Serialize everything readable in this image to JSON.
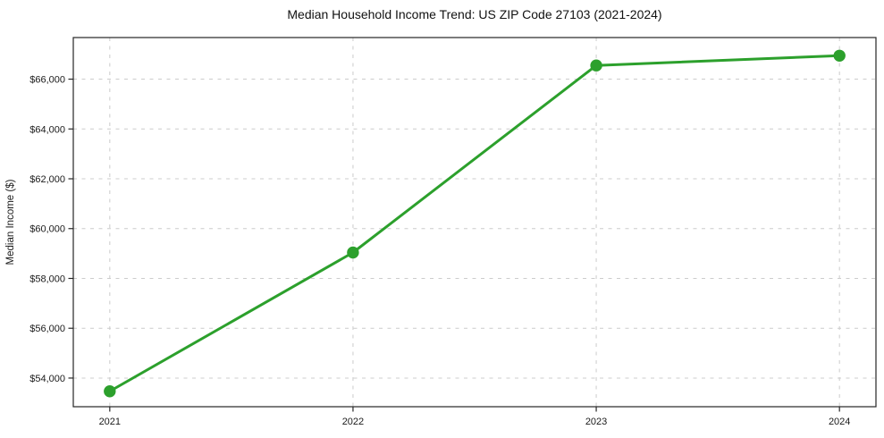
{
  "figure": {
    "background": "#ffffff"
  },
  "chart_data": {
    "type": "line",
    "title": "Median Household Income Trend: US ZIP Code 27103 (2021-2024)",
    "xlabel": "",
    "ylabel": "Median Income ($)",
    "categories": [
      "2021",
      "2022",
      "2023",
      "2024"
    ],
    "series": [
      {
        "name": "Median Household Income",
        "values": [
          53470,
          59040,
          66550,
          66940
        ],
        "color": "#2ca02c"
      }
    ],
    "y_ticks": [
      54000,
      56000,
      58000,
      60000,
      62000,
      64000,
      66000
    ],
    "y_tick_labels": [
      "$54,000",
      "$56,000",
      "$58,000",
      "$60,000",
      "$62,000",
      "$64,000",
      "$66,000"
    ],
    "ylim": [
      52850,
      67670
    ],
    "x_margin_frac": 0.05,
    "grid": true,
    "grid_style": "dashed",
    "legend_position": "none",
    "style": {
      "grid_color": "#cccccc",
      "axis_color": "#262626",
      "text_color": "#1a1a1a",
      "line_color": "#2ca02c",
      "marker_radius": 6.7,
      "line_width": 3
    }
  }
}
